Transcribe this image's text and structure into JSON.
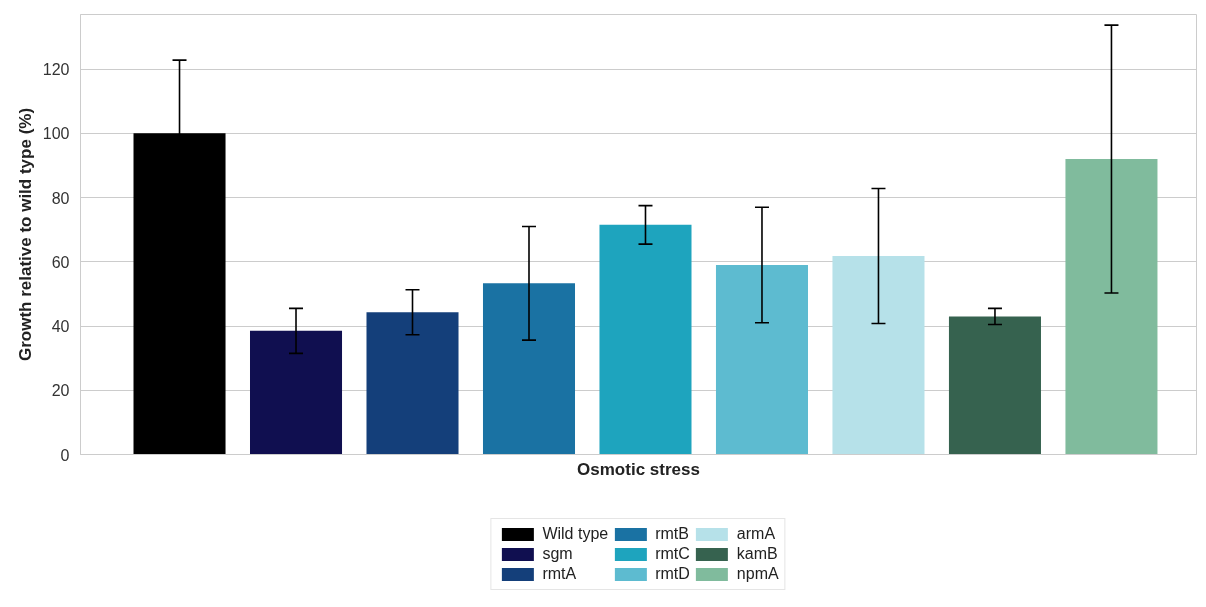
{
  "chart_data": {
    "type": "bar",
    "xlabel": "Osmotic stress",
    "ylabel": "Growth relative to wild type (%)",
    "categories": [
      null
    ],
    "series": [
      {
        "name": "Wild type",
        "color": "#000000",
        "values": [
          100
        ],
        "errors": [
          22.8
        ]
      },
      {
        "name": "sgm",
        "color": "#100f50",
        "values": [
          38.5
        ],
        "errors": [
          7
        ]
      },
      {
        "name": "rmtA",
        "color": "#143f7a",
        "values": [
          44.3
        ],
        "errors": [
          7
        ]
      },
      {
        "name": "rmtB",
        "color": "#1a72a3",
        "values": [
          53.3
        ],
        "errors": [
          17.7
        ]
      },
      {
        "name": "rmtC",
        "color": "#1ea4be",
        "values": [
          71.5
        ],
        "errors": [
          6
        ]
      },
      {
        "name": "rmtD",
        "color": "#5dbbd0",
        "values": [
          59
        ],
        "errors": [
          18
        ]
      },
      {
        "name": "armA",
        "color": "#b6e1e9",
        "values": [
          61.8
        ],
        "errors": [
          21
        ]
      },
      {
        "name": "kamB",
        "color": "#36624f",
        "values": [
          43
        ],
        "errors": [
          2.5
        ]
      },
      {
        "name": "npmA",
        "color": "#80bb9d",
        "values": [
          92
        ],
        "errors": [
          41.7
        ]
      }
    ],
    "ylim": [
      0,
      137
    ],
    "yticks": [
      0,
      20,
      40,
      60,
      80,
      100,
      120
    ],
    "grid": "y",
    "legend": "bottom"
  }
}
